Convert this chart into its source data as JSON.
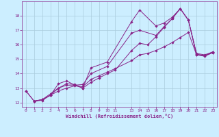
{
  "xlabel": "Windchill (Refroidissement éolien,°C)",
  "background_color": "#cceeff",
  "grid_color": "#aaccdd",
  "line_color": "#882288",
  "xlim": [
    -0.5,
    23.5
  ],
  "ylim": [
    11.7,
    19.0
  ],
  "xticks": [
    0,
    1,
    2,
    3,
    4,
    5,
    6,
    7,
    8,
    9,
    10,
    11,
    13,
    14,
    15,
    16,
    17,
    18,
    19,
    20,
    21,
    22,
    23
  ],
  "yticks": [
    12,
    13,
    14,
    15,
    16,
    17,
    18
  ],
  "lines": [
    {
      "x": [
        0,
        1,
        2,
        3,
        4,
        5,
        6,
        7,
        8,
        10,
        13,
        14,
        16,
        17,
        18,
        19,
        20,
        21,
        22,
        23
      ],
      "y": [
        12.8,
        12.1,
        12.15,
        12.5,
        13.3,
        13.5,
        13.2,
        13.0,
        14.4,
        14.8,
        17.6,
        18.4,
        17.3,
        17.5,
        17.9,
        18.5,
        17.7,
        15.4,
        15.3,
        15.5
      ]
    },
    {
      "x": [
        0,
        1,
        2,
        3,
        4,
        5,
        6,
        7,
        8,
        10,
        13,
        14,
        16,
        17,
        18,
        19,
        20,
        21,
        22,
        23
      ],
      "y": [
        12.8,
        12.1,
        12.2,
        12.6,
        13.0,
        13.2,
        13.2,
        13.25,
        14.0,
        14.5,
        16.8,
        17.0,
        16.65,
        17.25,
        17.8,
        18.5,
        17.7,
        15.3,
        15.2,
        15.45
      ]
    },
    {
      "x": [
        1,
        2,
        3,
        4,
        5,
        6,
        7,
        8,
        9,
        10,
        11,
        13,
        14,
        15,
        16,
        17,
        18,
        19,
        20,
        21,
        22,
        23
      ],
      "y": [
        12.1,
        12.2,
        12.5,
        13.0,
        13.3,
        13.25,
        13.0,
        13.4,
        13.7,
        14.0,
        14.25,
        15.6,
        16.1,
        16.0,
        16.55,
        17.2,
        17.8,
        18.5,
        17.7,
        15.35,
        15.25,
        15.5
      ]
    },
    {
      "x": [
        1,
        2,
        3,
        4,
        5,
        6,
        7,
        8,
        9,
        10,
        11,
        13,
        14,
        15,
        16,
        17,
        18,
        19,
        20,
        21,
        22,
        23
      ],
      "y": [
        12.1,
        12.2,
        12.5,
        12.8,
        13.0,
        13.15,
        13.1,
        13.6,
        13.85,
        14.1,
        14.35,
        14.9,
        15.3,
        15.4,
        15.6,
        15.85,
        16.15,
        16.5,
        16.85,
        15.3,
        15.25,
        15.45
      ]
    }
  ]
}
